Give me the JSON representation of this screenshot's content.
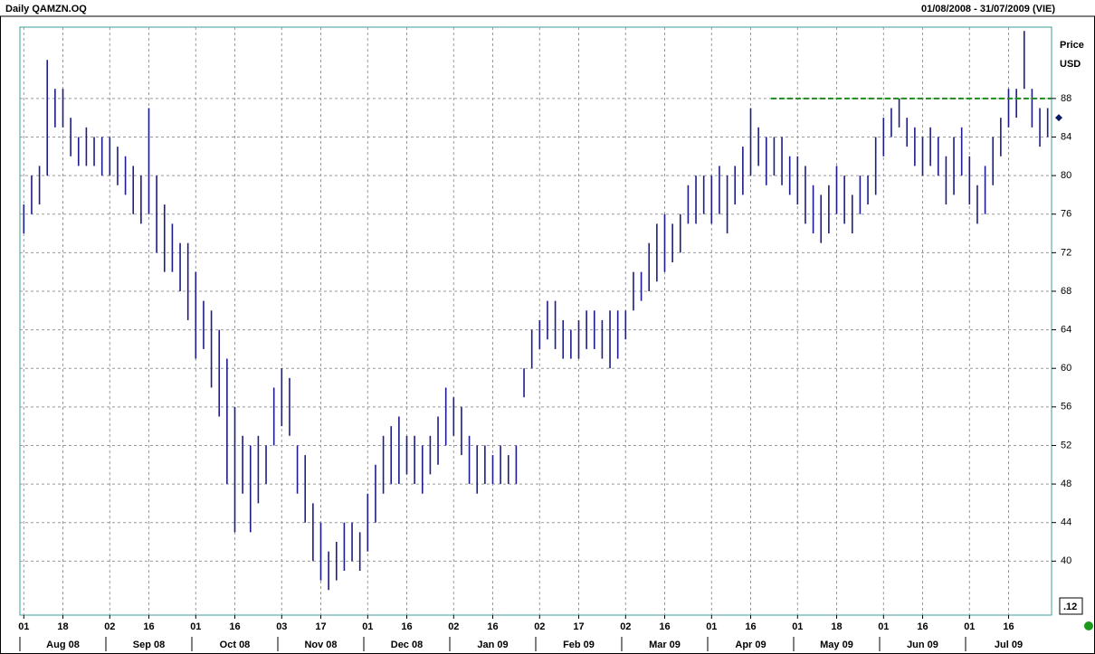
{
  "chart_data": {
    "type": "range_bar",
    "title": "Daily QAMZN.OQ",
    "subtitle": "01/08/2008 - 31/07/2009 (VIE)",
    "y_label_1": "Price",
    "y_label_2": "USD",
    "corner_label": ".12",
    "color": "#1c1c8a",
    "categories": [
      "01",
      null,
      null,
      null,
      null,
      "18",
      null,
      null,
      null,
      null,
      null,
      "02",
      null,
      null,
      null,
      null,
      "16",
      null,
      null,
      null,
      null,
      null,
      "01",
      null,
      null,
      null,
      null,
      "16",
      null,
      null,
      null,
      null,
      null,
      "03",
      null,
      null,
      null,
      null,
      "17",
      null,
      null,
      null,
      null,
      null,
      "01",
      null,
      null,
      null,
      null,
      "16",
      null,
      null,
      null,
      null,
      null,
      "02",
      null,
      null,
      null,
      null,
      "16",
      null,
      null,
      null,
      null,
      null,
      "02",
      null,
      null,
      null,
      null,
      "17",
      null,
      null,
      null,
      null,
      null,
      "02",
      null,
      null,
      null,
      null,
      "16",
      null,
      null,
      null,
      null,
      null,
      "01",
      null,
      null,
      null,
      null,
      "16",
      null,
      null,
      null,
      null,
      null,
      "01",
      null,
      null,
      null,
      null,
      "18",
      null,
      null,
      null,
      null,
      null,
      "01",
      null,
      null,
      null,
      null,
      "16",
      null,
      null,
      null,
      null,
      null,
      "01",
      null,
      null,
      null,
      null,
      "16",
      null,
      null,
      null,
      null,
      null
    ],
    "months": [
      "Aug 08",
      "Sep 08",
      "Oct 08",
      "Nov 08",
      "Dec 08",
      "Jan 09",
      "Feb 09",
      "Mar 09",
      "Apr 09",
      "May 09",
      "Jun 09",
      "Jul 09"
    ],
    "low": [
      74,
      76,
      77,
      80,
      85,
      85,
      82,
      81,
      81,
      81,
      80,
      80,
      79,
      78,
      76,
      75,
      76,
      72,
      70,
      70,
      68,
      65,
      61,
      62,
      58,
      55,
      48,
      43,
      47,
      43,
      46,
      48,
      52,
      54,
      53,
      47,
      44,
      40,
      38,
      37,
      38,
      39,
      40,
      39,
      41,
      44,
      47,
      48,
      48,
      49,
      48,
      47,
      49,
      50,
      52,
      53,
      51,
      48,
      47,
      48,
      48,
      48,
      48,
      48,
      57,
      60,
      62,
      63,
      62,
      61,
      61,
      61,
      62,
      62,
      61,
      60,
      61,
      63,
      66,
      67,
      68,
      69,
      70,
      71,
      72,
      75,
      75,
      76,
      75,
      76,
      74,
      77,
      78,
      80,
      81,
      79,
      80,
      79,
      78,
      77,
      75,
      74,
      73,
      74,
      76,
      75,
      74,
      76,
      77,
      78,
      82,
      84,
      85,
      83,
      81,
      80,
      81,
      80,
      77,
      78,
      80,
      77,
      75,
      76,
      79,
      82,
      85,
      86,
      89,
      85,
      83,
      84
    ],
    "high": [
      77,
      80,
      81,
      92,
      89,
      89,
      86,
      84,
      85,
      84,
      84,
      84,
      83,
      82,
      81,
      80,
      87,
      80,
      77,
      75,
      73,
      73,
      70,
      67,
      66,
      64,
      61,
      56,
      53,
      52,
      53,
      52,
      58,
      60,
      59,
      52,
      51,
      46,
      44,
      41,
      42,
      44,
      44,
      43,
      47,
      50,
      53,
      54,
      55,
      53,
      53,
      52,
      53,
      55,
      58,
      57,
      56,
      53,
      52,
      52,
      51,
      52,
      51,
      52,
      60,
      64,
      65,
      67,
      67,
      65,
      64,
      65,
      66,
      66,
      65,
      66,
      66,
      66,
      70,
      70,
      73,
      75,
      76,
      75,
      76,
      79,
      80,
      80,
      80,
      81,
      80,
      81,
      83,
      87,
      85,
      84,
      84,
      84,
      82,
      82,
      81,
      79,
      78,
      79,
      81,
      80,
      78,
      80,
      80,
      84,
      86,
      87,
      88,
      86,
      85,
      84,
      85,
      84,
      82,
      84,
      85,
      82,
      79,
      81,
      84,
      86,
      89,
      89,
      95,
      89,
      87,
      87
    ],
    "ylim": [
      34.4,
      95.4
    ],
    "yticks": [
      40,
      44,
      48,
      52,
      56,
      60,
      64,
      68,
      72,
      76,
      80,
      84,
      88
    ],
    "grid": true,
    "reference_line": {
      "value": 88,
      "color": "#1e8a1e"
    },
    "last_price": 86
  }
}
